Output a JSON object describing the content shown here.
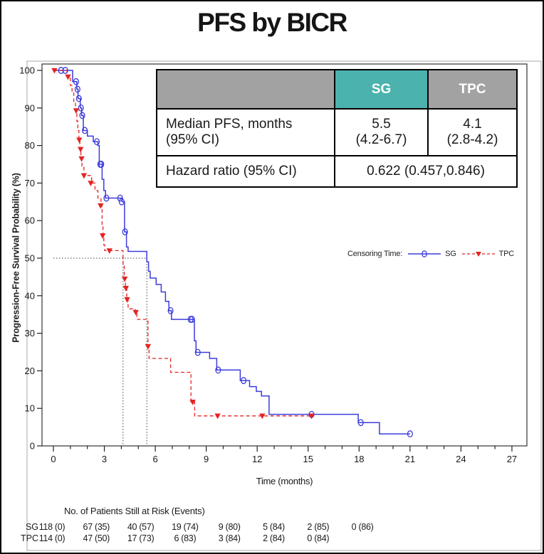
{
  "title": "PFS by BICR",
  "stats_table": {
    "headers": [
      "SG",
      "TPC"
    ],
    "median_row": {
      "label": [
        "Median PFS, months",
        "(95% CI)"
      ],
      "sg": [
        "5.5",
        "(4.2-6.7)"
      ],
      "tpc": [
        "4.1",
        "(2.8-4.2)"
      ]
    },
    "hazard_row": {
      "label": "Hazard ratio (95% CI)",
      "value": "0.622 (0.457,0.846)"
    },
    "colors": {
      "sg_header_bg": "#4cb2ae",
      "gray_header_bg": "#a2a2a2",
      "header_text": "#ffffff"
    }
  },
  "legend": {
    "label": "Censoring Time:"
  },
  "chart_data": {
    "type": "line",
    "subtype": "kaplan-meier-step",
    "xlabel": "Time (months)",
    "ylabel": "Progression-Free Survival Probability (%)",
    "xlim": [
      0,
      28
    ],
    "ylim": [
      0,
      100
    ],
    "xticks_major": [
      0,
      3,
      6,
      9,
      12,
      15,
      18,
      21,
      24,
      27
    ],
    "xticks_minor_every": 1,
    "yticks": [
      0,
      10,
      20,
      30,
      40,
      50,
      60,
      70,
      80,
      90,
      100
    ],
    "grid": false,
    "legend_position": "inside-right",
    "reference_lines": {
      "level_pct": 50,
      "sg_median_months": 5.5,
      "tpc_median_months": 4.1
    },
    "series": [
      {
        "name": "SG",
        "color": "#3c3cdc",
        "line_style": "solid",
        "marker": "open-circle",
        "start": [
          0,
          100
        ],
        "steps": [
          [
            1.13,
            97
          ],
          [
            1.38,
            95
          ],
          [
            1.45,
            92.5
          ],
          [
            1.58,
            90
          ],
          [
            1.66,
            88
          ],
          [
            1.76,
            84
          ],
          [
            2.0,
            82.5
          ],
          [
            2.35,
            81
          ],
          [
            2.62,
            80
          ],
          [
            2.7,
            75
          ],
          [
            2.87,
            71
          ],
          [
            2.97,
            68
          ],
          [
            3.07,
            66
          ],
          [
            4.05,
            65
          ],
          [
            4.19,
            57
          ],
          [
            4.3,
            53
          ],
          [
            4.4,
            51.8
          ],
          [
            5.5,
            49
          ],
          [
            5.6,
            46.5
          ],
          [
            5.7,
            44.7
          ],
          [
            6.05,
            43
          ],
          [
            6.35,
            41
          ],
          [
            6.6,
            38.5
          ],
          [
            6.8,
            36
          ],
          [
            6.95,
            33.7
          ],
          [
            8.3,
            28
          ],
          [
            8.4,
            24.9
          ],
          [
            9.2,
            23.3
          ],
          [
            9.62,
            20.2
          ],
          [
            11.0,
            17.4
          ],
          [
            11.55,
            15.8
          ],
          [
            11.95,
            14.5
          ],
          [
            12.25,
            13.3
          ],
          [
            12.7,
            8.4
          ],
          [
            17.95,
            6.2
          ],
          [
            19.2,
            3.2
          ]
        ],
        "end_time": 21.0,
        "censor_marks": [
          [
            0.45,
            100
          ],
          [
            0.7,
            100
          ],
          [
            1.34,
            97
          ],
          [
            1.42,
            95
          ],
          [
            1.5,
            92.5
          ],
          [
            1.62,
            90
          ],
          [
            1.7,
            88
          ],
          [
            1.85,
            84
          ],
          [
            2.56,
            81
          ],
          [
            2.76,
            75
          ],
          [
            2.82,
            75
          ],
          [
            3.12,
            66
          ],
          [
            3.93,
            66
          ],
          [
            4.02,
            65
          ],
          [
            4.22,
            57
          ],
          [
            6.9,
            36
          ],
          [
            8.08,
            33.7
          ],
          [
            8.16,
            33.7
          ],
          [
            8.5,
            24.9
          ],
          [
            9.7,
            20.2
          ],
          [
            11.2,
            17.4
          ],
          [
            15.2,
            8.4
          ],
          [
            18.1,
            6.2
          ],
          [
            21.0,
            3.2
          ]
        ]
      },
      {
        "name": "TPC",
        "color": "#e32323",
        "line_style": "dashed",
        "marker": "filled-triangle-down",
        "start": [
          0,
          100
        ],
        "steps": [
          [
            0.8,
            98.3
          ],
          [
            1.0,
            96
          ],
          [
            1.1,
            94
          ],
          [
            1.2,
            91.5
          ],
          [
            1.3,
            89.3
          ],
          [
            1.38,
            86.5
          ],
          [
            1.44,
            84
          ],
          [
            1.5,
            81.5
          ],
          [
            1.56,
            79
          ],
          [
            1.62,
            76.5
          ],
          [
            1.68,
            74.5
          ],
          [
            1.8,
            72
          ],
          [
            2.25,
            70
          ],
          [
            2.45,
            68
          ],
          [
            2.62,
            66
          ],
          [
            2.8,
            64
          ],
          [
            2.87,
            59
          ],
          [
            2.92,
            56
          ],
          [
            2.97,
            53.5
          ],
          [
            3.02,
            52
          ],
          [
            4.1,
            48.5
          ],
          [
            4.17,
            44.5
          ],
          [
            4.24,
            42
          ],
          [
            4.32,
            39
          ],
          [
            4.4,
            36.5
          ],
          [
            4.82,
            35.6
          ],
          [
            4.92,
            33.7
          ],
          [
            5.57,
            26.5
          ],
          [
            5.63,
            23.3
          ],
          [
            6.9,
            19.6
          ],
          [
            8.1,
            11.7
          ],
          [
            8.32,
            8.0
          ]
        ],
        "end_time": 15.35,
        "censor_marks": [
          [
            0.06,
            100
          ],
          [
            0.86,
            98.3
          ],
          [
            1.34,
            89.3
          ],
          [
            1.52,
            81.5
          ],
          [
            1.6,
            79
          ],
          [
            1.66,
            76.5
          ],
          [
            1.8,
            72
          ],
          [
            2.2,
            70
          ],
          [
            2.78,
            64
          ],
          [
            2.9,
            56
          ],
          [
            3.3,
            52
          ],
          [
            4.2,
            44.5
          ],
          [
            4.27,
            42
          ],
          [
            4.34,
            39
          ],
          [
            4.85,
            35.6
          ],
          [
            5.57,
            26.5
          ],
          [
            8.2,
            11.7
          ],
          [
            9.67,
            8.0
          ],
          [
            12.3,
            8.0
          ],
          [
            15.2,
            8.0
          ]
        ]
      }
    ]
  },
  "risk_table": {
    "title": "No. of Patients Still at Risk (Events)",
    "times": [
      0,
      3,
      6,
      9,
      12,
      15,
      18,
      21
    ],
    "rows": [
      {
        "label": "SG",
        "values": [
          "118 (0)",
          "67 (35)",
          "40 (57)",
          "19 (74)",
          "9 (80)",
          "5 (84)",
          "2 (85)",
          "0 (86)"
        ]
      },
      {
        "label": "TPC",
        "values": [
          "114 (0)",
          "47 (50)",
          "17 (73)",
          "6 (83)",
          "3 (84)",
          "2 (84)",
          "0 (84)"
        ]
      }
    ]
  }
}
